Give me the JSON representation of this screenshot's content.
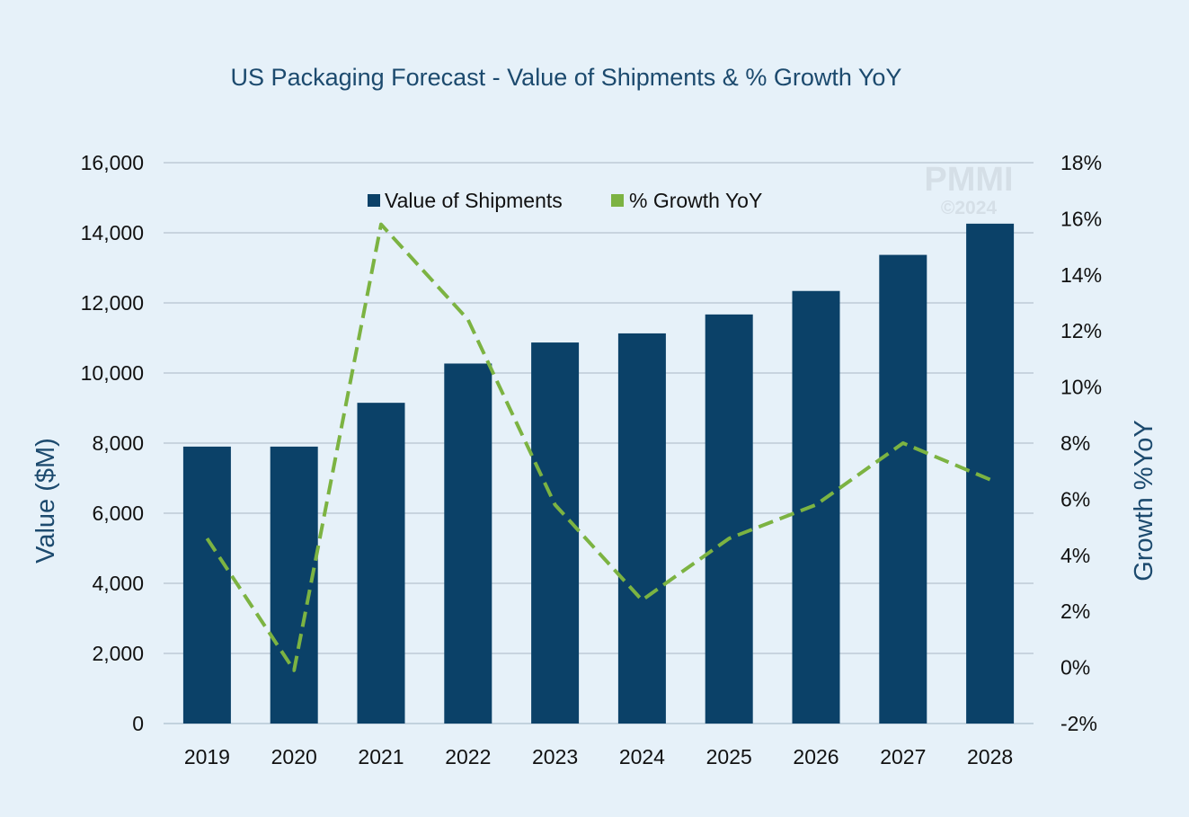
{
  "chart_data": {
    "type": "bar",
    "title": "US Packaging Forecast - Value of Shipments & % Growth YoY",
    "categories": [
      "2019",
      "2020",
      "2021",
      "2022",
      "2023",
      "2024",
      "2025",
      "2026",
      "2027",
      "2028"
    ],
    "series": [
      {
        "name": "Value of Shipments",
        "type": "bar",
        "axis": "left",
        "color": "#0b4168",
        "values": [
          7900,
          7900,
          9150,
          10270,
          10870,
          11130,
          11670,
          12340,
          13370,
          14260
        ]
      },
      {
        "name": "% Growth YoY",
        "type": "line",
        "style": "dashed",
        "axis": "right",
        "color": "#7cb342",
        "values": [
          4.6,
          -0.1,
          15.8,
          12.4,
          5.8,
          2.4,
          4.6,
          5.8,
          8.0,
          6.7
        ]
      }
    ],
    "ylabel": "Value ($M)",
    "y2label": "Growth %YoY",
    "ylim": [
      0,
      16000
    ],
    "y2lim": [
      -2,
      18
    ],
    "yticks": [
      "0",
      "2,000",
      "4,000",
      "6,000",
      "8,000",
      "10,000",
      "12,000",
      "14,000",
      "16,000"
    ],
    "y2ticks": [
      "-2%",
      "0%",
      "2%",
      "4%",
      "6%",
      "8%",
      "10%",
      "12%",
      "14%",
      "16%",
      "18%"
    ],
    "grid": true,
    "legend_position": "top-center"
  },
  "watermark": {
    "brand": "PMMI",
    "copyright": "©2024"
  }
}
